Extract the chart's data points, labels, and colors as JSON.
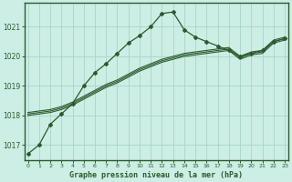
{
  "title": "Graphe pression niveau de la mer (hPa)",
  "background_color": "#cceee4",
  "line_color": "#2d5a2d",
  "grid_color": "#aad4c8",
  "border_color": "#2d5a2d",
  "x_hours": [
    0,
    1,
    2,
    3,
    4,
    5,
    6,
    7,
    8,
    9,
    10,
    11,
    12,
    13,
    14,
    15,
    16,
    17,
    18,
    19,
    20,
    21,
    22,
    23
  ],
  "line_marker": [
    1016.7,
    1017.0,
    1017.7,
    1018.05,
    1018.4,
    1019.0,
    1019.45,
    1019.75,
    1020.1,
    1020.45,
    1020.7,
    1021.0,
    1021.45,
    1021.5,
    1020.9,
    1020.65,
    1020.5,
    1020.35,
    1020.2,
    1020.0,
    1020.1,
    1020.2,
    1020.5,
    1020.6
  ],
  "line_a": [
    1018.0,
    1018.05,
    1018.1,
    1018.2,
    1018.35,
    1018.55,
    1018.75,
    1018.95,
    1019.1,
    1019.3,
    1019.5,
    1019.65,
    1019.8,
    1019.9,
    1020.0,
    1020.05,
    1020.1,
    1020.15,
    1020.2,
    1019.9,
    1020.05,
    1020.1,
    1020.45,
    1020.55
  ],
  "line_b": [
    1018.05,
    1018.1,
    1018.15,
    1018.25,
    1018.4,
    1018.6,
    1018.8,
    1019.0,
    1019.15,
    1019.35,
    1019.55,
    1019.7,
    1019.85,
    1019.95,
    1020.05,
    1020.1,
    1020.15,
    1020.2,
    1020.25,
    1019.95,
    1020.1,
    1020.15,
    1020.5,
    1020.6
  ],
  "line_c": [
    1018.1,
    1018.15,
    1018.2,
    1018.3,
    1018.45,
    1018.65,
    1018.85,
    1019.05,
    1019.2,
    1019.4,
    1019.6,
    1019.75,
    1019.9,
    1020.0,
    1020.1,
    1020.15,
    1020.2,
    1020.25,
    1020.3,
    1020.0,
    1020.15,
    1020.2,
    1020.55,
    1020.65
  ],
  "ylim": [
    1016.5,
    1021.8
  ],
  "yticks": [
    1017,
    1018,
    1019,
    1020,
    1021
  ],
  "xlim": [
    -0.3,
    23.3
  ]
}
